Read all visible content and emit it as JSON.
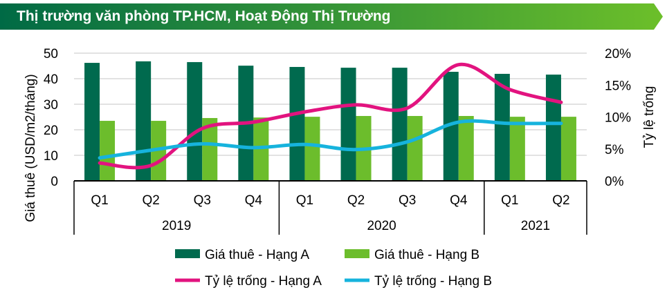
{
  "title": "Thị trường văn phòng TP.HCM, Hoạt Động Thị Trường",
  "colors": {
    "title_bg_start": "#006a45",
    "title_bg_end": "#6cbf2a",
    "rent_a": "#006a4e",
    "rent_b": "#6cbd2c",
    "vac_a": "#e2137f",
    "vac_b": "#16b3dd"
  },
  "chart_data": {
    "type": "bar+line",
    "categories": [
      "Q1",
      "Q2",
      "Q3",
      "Q4",
      "Q1",
      "Q2",
      "Q3",
      "Q4",
      "Q1",
      "Q2"
    ],
    "groups": [
      {
        "label": "2019",
        "count": 4
      },
      {
        "label": "2020",
        "count": 4
      },
      {
        "label": "2021",
        "count": 2
      }
    ],
    "ylabel": "Giá thuê (USD/m2/tháng)",
    "y2label": "Tỷ lệ trống",
    "ylim": [
      0,
      50
    ],
    "yticks": [
      "0",
      "10",
      "20",
      "30",
      "40",
      "50"
    ],
    "y2lim": [
      0,
      20
    ],
    "y2ticks": [
      "0%",
      "5%",
      "10%",
      "15%",
      "20%"
    ],
    "grid": true,
    "legend": "bottom",
    "series": [
      {
        "name": "Giá thuê - Hạng A",
        "type": "bar",
        "axis": "left",
        "values": [
          46.2,
          46.8,
          46.5,
          45.1,
          44.6,
          44.3,
          44.3,
          42.7,
          41.9,
          41.6
        ]
      },
      {
        "name": "Giá thuê - Hạng B",
        "type": "bar",
        "axis": "left",
        "values": [
          23.5,
          23.5,
          24.6,
          24.8,
          25.1,
          25.4,
          25.4,
          25.4,
          25.1,
          25.1
        ]
      },
      {
        "name": "Tỷ lệ trống - Hạng A",
        "type": "line",
        "axis": "right",
        "values": [
          2.8,
          2.4,
          8.2,
          9.2,
          10.8,
          11.9,
          11.4,
          18.2,
          14.3,
          12.3
        ]
      },
      {
        "name": "Tỷ lệ trống - Hạng B",
        "type": "line",
        "axis": "right",
        "values": [
          3.6,
          4.8,
          5.8,
          5.2,
          5.7,
          4.9,
          6.1,
          9.2,
          9.0,
          9.0
        ]
      }
    ]
  }
}
